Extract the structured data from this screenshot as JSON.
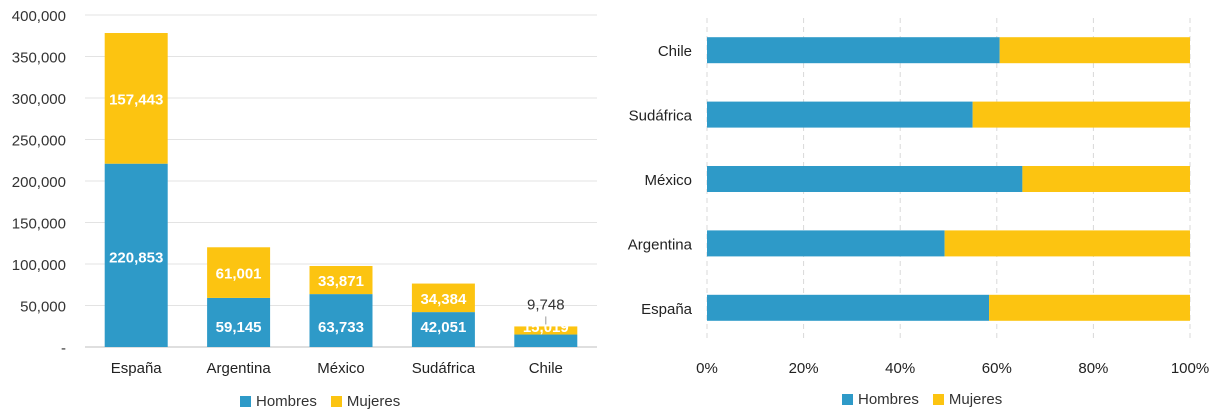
{
  "chart_data": [
    {
      "type": "bar",
      "stacked": true,
      "categories": [
        "España",
        "Argentina",
        "México",
        "Sudáfrica",
        "Chile"
      ],
      "series": [
        {
          "name": "Hombres",
          "color": "#2e9ac8",
          "values": [
            220853,
            59145,
            63733,
            42051,
            15019
          ],
          "labels": [
            "220,853",
            "59,145",
            "63,733",
            "42,051",
            "15,019"
          ]
        },
        {
          "name": "Mujeres",
          "color": "#fcc411",
          "values": [
            157443,
            61001,
            33871,
            34384,
            9748
          ],
          "labels": [
            "157,443",
            "61,001",
            "33,871",
            "34,384",
            "9,748"
          ]
        }
      ],
      "ylim": [
        0,
        400000
      ],
      "yticks": [
        0,
        50000,
        100000,
        150000,
        200000,
        250000,
        300000,
        350000,
        400000
      ],
      "ytick_labels": [
        "-",
        "50,000",
        "100,000",
        "150,000",
        "200,000",
        "250,000",
        "300,000",
        "350,000",
        "400,000"
      ],
      "grid": true,
      "legend": "bottom"
    },
    {
      "type": "bar",
      "orientation": "horizontal",
      "stacked_percent": true,
      "categories": [
        "España",
        "Argentina",
        "México",
        "Sudáfrica",
        "Chile"
      ],
      "series": [
        {
          "name": "Hombres",
          "color": "#2e9ac8",
          "values": [
            58.4,
            49.2,
            65.3,
            55.0,
            60.6
          ]
        },
        {
          "name": "Mujeres",
          "color": "#fcc411",
          "values": [
            41.6,
            50.8,
            34.7,
            45.0,
            39.4
          ]
        }
      ],
      "xlim": [
        0,
        100
      ],
      "xticks": [
        0,
        20,
        40,
        60,
        80,
        100
      ],
      "xtick_labels": [
        "0%",
        "20%",
        "40%",
        "60%",
        "80%",
        "100%"
      ],
      "grid": true,
      "legend": "bottom"
    }
  ],
  "legend": {
    "hombres": "Hombres",
    "mujeres": "Mujeres"
  }
}
